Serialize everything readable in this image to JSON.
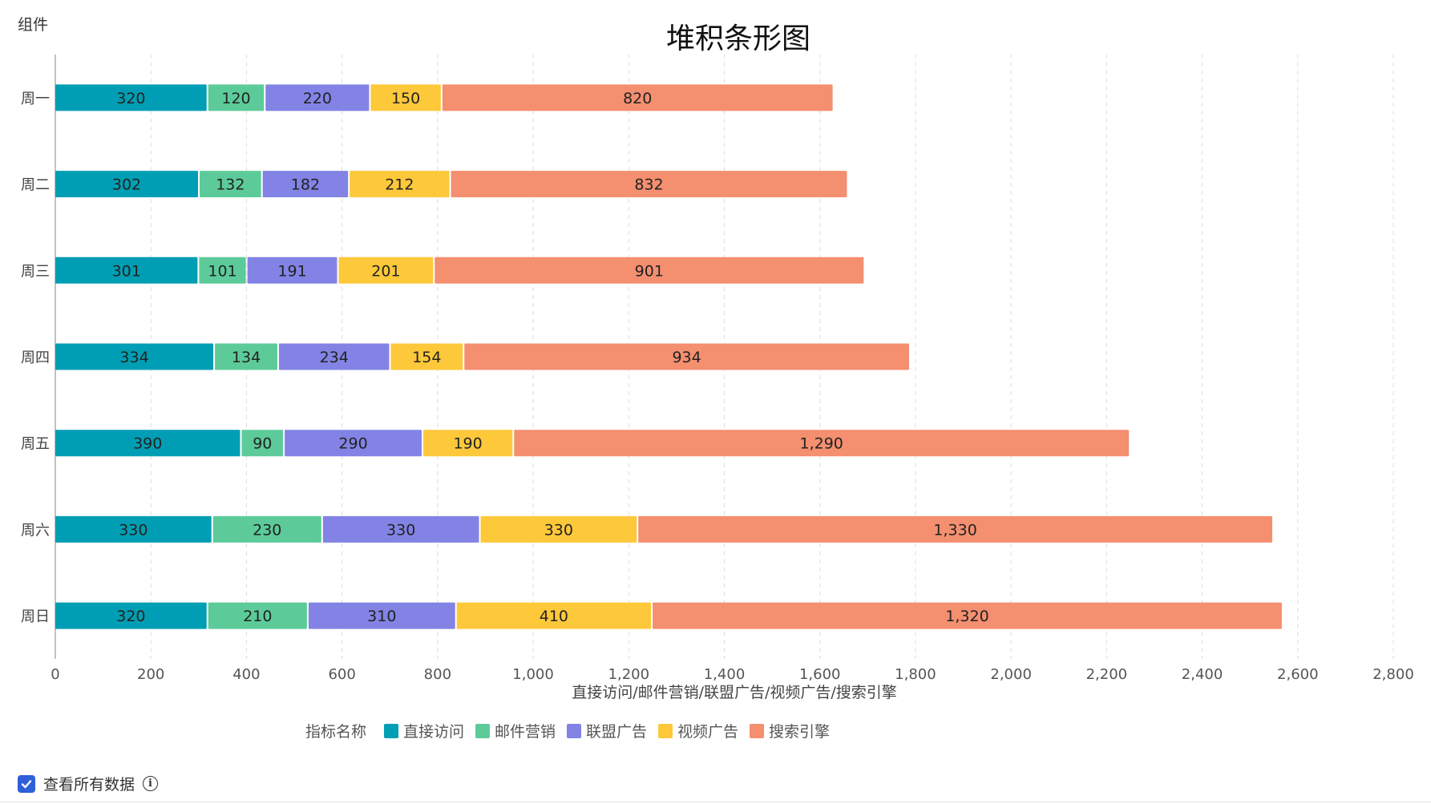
{
  "header": {
    "corner_label": "组件"
  },
  "chart_data": {
    "type": "bar",
    "orientation": "horizontal",
    "stacked": true,
    "title": "堆积条形图",
    "xlabel": "直接访问/邮件营销/联盟广告/视频广告/搜索引擎",
    "ylabel": "",
    "xlim": [
      0,
      2800
    ],
    "xticks": [
      0,
      200,
      400,
      600,
      800,
      1000,
      1200,
      1400,
      1600,
      1800,
      2000,
      2200,
      2400,
      2600,
      2800
    ],
    "grid": "vertical dashed",
    "categories": [
      "周一",
      "周二",
      "周三",
      "周四",
      "周五",
      "周六",
      "周日"
    ],
    "series": [
      {
        "name": "直接访问",
        "color": "#009eb4",
        "values": [
          320,
          302,
          301,
          334,
          390,
          330,
          320
        ]
      },
      {
        "name": "邮件营销",
        "color": "#5ccb99",
        "values": [
          120,
          132,
          101,
          134,
          90,
          230,
          210
        ]
      },
      {
        "name": "联盟广告",
        "color": "#8283e5",
        "values": [
          220,
          182,
          191,
          234,
          290,
          330,
          310
        ]
      },
      {
        "name": "视频广告",
        "color": "#fdc83a",
        "values": [
          150,
          212,
          201,
          154,
          190,
          330,
          410
        ]
      },
      {
        "name": "搜索引擎",
        "color": "#f48f70",
        "values": [
          820,
          832,
          901,
          934,
          1290,
          1330,
          1320
        ]
      }
    ],
    "legend_title": "指标名称",
    "legend_position": "bottom-center"
  },
  "footer": {
    "checkbox_label": "查看所有数据",
    "checkbox_checked": true,
    "info_icon": "info-icon"
  }
}
